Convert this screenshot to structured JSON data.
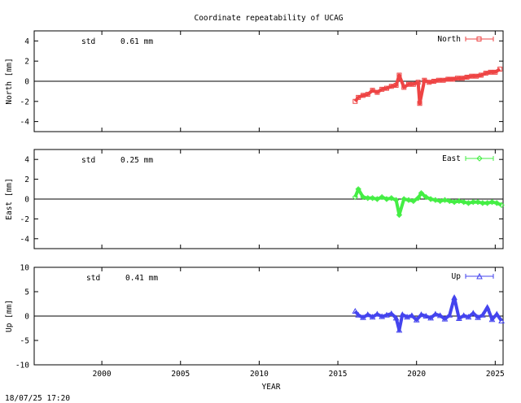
{
  "title": "Coordinate repeatability of UCAG",
  "footer_timestamp": "18/07/25 17:20",
  "colors": {
    "north": "#ee4444",
    "east": "#44ee44",
    "up": "#4444ee",
    "axis": "#000000"
  },
  "chart_data": [
    {
      "type": "scatter",
      "component": "North",
      "ylabel": "North [mm]",
      "legend": "North",
      "legend_position": "top-right",
      "std_label": "std",
      "std_value": "0.61 mm",
      "xlim": [
        1995.7,
        2025.5
      ],
      "ylim": [
        -5,
        5
      ],
      "yticks": [
        4,
        2,
        0,
        -2,
        -4
      ],
      "tick_labels": [
        "4",
        "2",
        "0",
        "-2",
        "-4"
      ],
      "series": [
        {
          "name": "North",
          "marker": "square",
          "x": [
            2016.1,
            2016.3,
            2016.6,
            2016.9,
            2017.2,
            2017.5,
            2017.8,
            2018.1,
            2018.4,
            2018.7,
            2018.9,
            2019.2,
            2019.5,
            2019.8,
            2020.1,
            2020.2,
            2020.5,
            2020.8,
            2021.1,
            2021.4,
            2021.7,
            2022.0,
            2022.3,
            2022.6,
            2022.9,
            2023.2,
            2023.5,
            2023.8,
            2024.1,
            2024.4,
            2024.7,
            2025.0,
            2025.3
          ],
          "y": [
            -2.0,
            -1.6,
            -1.4,
            -1.3,
            -0.9,
            -1.1,
            -0.8,
            -0.7,
            -0.5,
            -0.4,
            0.6,
            -0.6,
            -0.3,
            -0.3,
            -0.1,
            -2.2,
            0.1,
            -0.1,
            0.0,
            0.1,
            0.1,
            0.2,
            0.2,
            0.3,
            0.3,
            0.4,
            0.5,
            0.5,
            0.6,
            0.8,
            0.9,
            0.9,
            1.2
          ]
        }
      ]
    },
    {
      "type": "scatter",
      "component": "East",
      "ylabel": "East [mm]",
      "legend": "East",
      "legend_position": "top-right",
      "std_label": "std",
      "std_value": "0.25 mm",
      "xlim": [
        1995.7,
        2025.5
      ],
      "ylim": [
        -5,
        5
      ],
      "yticks": [
        4,
        2,
        0,
        -2,
        -4
      ],
      "tick_labels": [
        "4",
        "2",
        "0",
        "-2",
        "-4"
      ],
      "series": [
        {
          "name": "East",
          "marker": "diamond",
          "x": [
            2016.1,
            2016.3,
            2016.6,
            2016.9,
            2017.2,
            2017.5,
            2017.8,
            2018.1,
            2018.4,
            2018.7,
            2018.9,
            2019.2,
            2019.5,
            2019.8,
            2020.1,
            2020.3,
            2020.6,
            2020.9,
            2021.2,
            2021.5,
            2021.8,
            2022.1,
            2022.4,
            2022.7,
            2023.0,
            2023.3,
            2023.6,
            2023.9,
            2024.2,
            2024.5,
            2024.8,
            2025.1,
            2025.4
          ],
          "y": [
            0.2,
            1.0,
            0.2,
            0.1,
            0.1,
            0.0,
            0.2,
            0.0,
            0.1,
            -0.1,
            -1.6,
            0.0,
            -0.1,
            -0.2,
            0.1,
            0.6,
            0.2,
            0.0,
            -0.1,
            -0.2,
            -0.1,
            -0.2,
            -0.3,
            -0.2,
            -0.3,
            -0.4,
            -0.3,
            -0.3,
            -0.4,
            -0.4,
            -0.3,
            -0.4,
            -0.6
          ]
        }
      ]
    },
    {
      "type": "scatter",
      "component": "Up",
      "ylabel": "Up [mm]",
      "xlabel": "YEAR",
      "legend": "Up",
      "legend_position": "top-right",
      "std_label": "std",
      "std_value": "0.41 mm",
      "xlim": [
        1995.7,
        2025.5
      ],
      "xticks": [
        2000,
        2005,
        2010,
        2015,
        2020,
        2025
      ],
      "x_tick_labels": [
        "2000",
        "2005",
        "2010",
        "2015",
        "2020",
        "2025"
      ],
      "ylim": [
        -10,
        10
      ],
      "yticks": [
        10,
        5,
        0,
        -5,
        -10
      ],
      "tick_labels": [
        "10",
        "5",
        "0",
        "-5",
        "-10"
      ],
      "series": [
        {
          "name": "Up",
          "marker": "triangle",
          "x": [
            2016.1,
            2016.3,
            2016.6,
            2016.9,
            2017.2,
            2017.5,
            2017.8,
            2018.1,
            2018.4,
            2018.7,
            2018.9,
            2019.1,
            2019.4,
            2019.7,
            2020.0,
            2020.3,
            2020.6,
            2020.9,
            2021.2,
            2021.5,
            2021.8,
            2022.1,
            2022.4,
            2022.7,
            2023.0,
            2023.3,
            2023.6,
            2023.9,
            2024.2,
            2024.5,
            2024.8,
            2025.1,
            2025.4
          ],
          "y": [
            1.0,
            0.2,
            -0.3,
            0.3,
            -0.2,
            0.4,
            -0.1,
            0.2,
            0.5,
            -0.4,
            -2.9,
            0.3,
            -0.2,
            0.1,
            -0.8,
            0.3,
            0.0,
            -0.4,
            0.4,
            0.1,
            -0.6,
            0.2,
            3.8,
            -0.5,
            0.1,
            -0.2,
            0.6,
            -0.3,
            0.2,
            1.8,
            -0.7,
            0.4,
            -1.0
          ]
        }
      ]
    }
  ]
}
